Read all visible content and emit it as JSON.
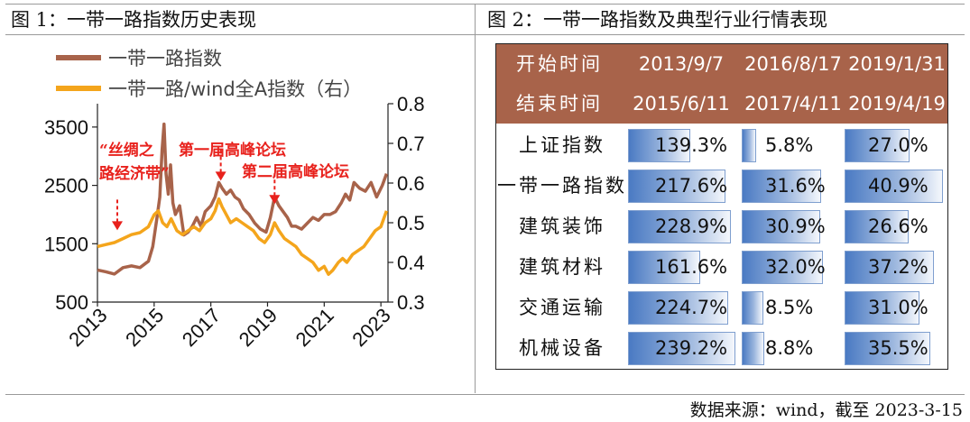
{
  "left_title": "图 1：一带一路指数历史表现",
  "right_title": "图 2：一带一路指数及典型行业行情表现",
  "source": "数据来源：wind，截至 2023-3-15",
  "colors": {
    "brown": "#a8634a",
    "orange": "#f4a51c",
    "annotation": "#e8211c",
    "bar": "#4a7ac3"
  },
  "chart_data": {
    "type": "line",
    "title": "一带一路指数历史表现",
    "x_ticks": [
      "2013",
      "2015",
      "2017",
      "2019",
      "2021",
      "2023"
    ],
    "xlim": [
      2013.0,
      2023.25
    ],
    "left_axis": {
      "ticks": [
        "500",
        "1500",
        "2500",
        "3500"
      ],
      "ylim": [
        500,
        3900
      ]
    },
    "right_axis": {
      "ticks": [
        "0.3",
        "0.4",
        "0.5",
        "0.6",
        "0.7",
        "0.8"
      ],
      "ylim": [
        0.3,
        0.8
      ]
    },
    "legend": [
      "一带一路指数",
      "一带一路/wind全A指数（右）"
    ],
    "series": [
      {
        "name": "一带一路指数",
        "axis": "left",
        "points": [
          [
            2013.0,
            1050
          ],
          [
            2013.3,
            1020
          ],
          [
            2013.6,
            980
          ],
          [
            2013.9,
            1090
          ],
          [
            2014.2,
            1120
          ],
          [
            2014.5,
            1090
          ],
          [
            2014.8,
            1200
          ],
          [
            2014.95,
            1450
          ],
          [
            2015.1,
            1950
          ],
          [
            2015.2,
            2300
          ],
          [
            2015.28,
            3100
          ],
          [
            2015.35,
            3550
          ],
          [
            2015.42,
            2700
          ],
          [
            2015.5,
            2350
          ],
          [
            2015.58,
            2850
          ],
          [
            2015.66,
            2200
          ],
          [
            2015.75,
            2000
          ],
          [
            2015.9,
            2150
          ],
          [
            2016.05,
            1650
          ],
          [
            2016.2,
            1700
          ],
          [
            2016.35,
            1800
          ],
          [
            2016.5,
            1950
          ],
          [
            2016.65,
            1800
          ],
          [
            2016.8,
            2050
          ],
          [
            2017.0,
            2150
          ],
          [
            2017.15,
            2300
          ],
          [
            2017.28,
            2550
          ],
          [
            2017.4,
            2450
          ],
          [
            2017.55,
            2350
          ],
          [
            2017.7,
            2420
          ],
          [
            2017.85,
            2300
          ],
          [
            2018.0,
            2250
          ],
          [
            2018.15,
            2100
          ],
          [
            2018.35,
            2000
          ],
          [
            2018.55,
            1850
          ],
          [
            2018.75,
            1750
          ],
          [
            2018.95,
            1700
          ],
          [
            2019.1,
            1950
          ],
          [
            2019.25,
            2300
          ],
          [
            2019.4,
            2150
          ],
          [
            2019.55,
            2050
          ],
          [
            2019.7,
            1950
          ],
          [
            2019.85,
            1800
          ],
          [
            2020.0,
            1800
          ],
          [
            2020.2,
            1750
          ],
          [
            2020.4,
            1850
          ],
          [
            2020.6,
            1950
          ],
          [
            2020.8,
            1900
          ],
          [
            2021.0,
            2000
          ],
          [
            2021.2,
            2000
          ],
          [
            2021.4,
            2050
          ],
          [
            2021.6,
            2200
          ],
          [
            2021.75,
            2350
          ],
          [
            2021.9,
            2250
          ],
          [
            2022.05,
            2550
          ],
          [
            2022.25,
            2450
          ],
          [
            2022.45,
            2400
          ],
          [
            2022.65,
            2550
          ],
          [
            2022.85,
            2300
          ],
          [
            2023.05,
            2500
          ],
          [
            2023.2,
            2700
          ]
        ]
      },
      {
        "name": "一带一路/wind全A指数（右）",
        "axis": "right",
        "points": [
          [
            2013.0,
            0.44
          ],
          [
            2013.3,
            0.445
          ],
          [
            2013.6,
            0.45
          ],
          [
            2013.9,
            0.46
          ],
          [
            2014.2,
            0.47
          ],
          [
            2014.5,
            0.475
          ],
          [
            2014.8,
            0.49
          ],
          [
            2015.0,
            0.52
          ],
          [
            2015.15,
            0.53
          ],
          [
            2015.3,
            0.5
          ],
          [
            2015.45,
            0.49
          ],
          [
            2015.6,
            0.51
          ],
          [
            2015.8,
            0.48
          ],
          [
            2016.0,
            0.47
          ],
          [
            2016.2,
            0.48
          ],
          [
            2016.4,
            0.49
          ],
          [
            2016.6,
            0.48
          ],
          [
            2016.8,
            0.5
          ],
          [
            2017.0,
            0.51
          ],
          [
            2017.15,
            0.53
          ],
          [
            2017.28,
            0.56
          ],
          [
            2017.4,
            0.54
          ],
          [
            2017.55,
            0.52
          ],
          [
            2017.7,
            0.5
          ],
          [
            2017.9,
            0.51
          ],
          [
            2018.1,
            0.5
          ],
          [
            2018.3,
            0.49
          ],
          [
            2018.5,
            0.48
          ],
          [
            2018.7,
            0.46
          ],
          [
            2018.9,
            0.45
          ],
          [
            2019.1,
            0.47
          ],
          [
            2019.25,
            0.5
          ],
          [
            2019.4,
            0.48
          ],
          [
            2019.6,
            0.46
          ],
          [
            2019.8,
            0.45
          ],
          [
            2020.0,
            0.44
          ],
          [
            2020.2,
            0.42
          ],
          [
            2020.4,
            0.41
          ],
          [
            2020.6,
            0.4
          ],
          [
            2020.8,
            0.38
          ],
          [
            2021.0,
            0.39
          ],
          [
            2021.15,
            0.37
          ],
          [
            2021.3,
            0.38
          ],
          [
            2021.5,
            0.4
          ],
          [
            2021.65,
            0.41
          ],
          [
            2021.8,
            0.4
          ],
          [
            2022.0,
            0.42
          ],
          [
            2022.2,
            0.43
          ],
          [
            2022.4,
            0.44
          ],
          [
            2022.6,
            0.46
          ],
          [
            2022.8,
            0.48
          ],
          [
            2023.0,
            0.49
          ],
          [
            2023.2,
            0.53
          ]
        ]
      }
    ],
    "annotations": [
      {
        "lines": [
          "“丝绸之",
          "路经济带”"
        ],
        "arrow_x": 2013.7,
        "arrow_y": 1700
      },
      {
        "lines": [
          "第一届高峰论坛"
        ],
        "arrow_x": 2017.35,
        "arrow_y": 2550
      },
      {
        "lines": [
          "第二届高峰论坛"
        ],
        "arrow_x": 2019.25,
        "arrow_y": 2150
      }
    ]
  },
  "table": {
    "header_rows": [
      {
        "label": "开始时间",
        "values": [
          "2013/9/7",
          "2016/8/17",
          "2019/1/31"
        ]
      },
      {
        "label": "结束时间",
        "values": [
          "2015/6/11",
          "2017/4/11",
          "2019/4/19"
        ]
      }
    ],
    "rows": [
      {
        "label": "上证指数",
        "values": [
          "139.3%",
          "5.8%",
          "27.0%"
        ],
        "nums": [
          139.3,
          5.8,
          27.0
        ]
      },
      {
        "label": "一带一路指数",
        "values": [
          "217.6%",
          "31.6%",
          "40.9%"
        ],
        "nums": [
          217.6,
          31.6,
          40.9
        ]
      },
      {
        "label": "建筑装饰",
        "values": [
          "228.9%",
          "30.9%",
          "26.6%"
        ],
        "nums": [
          228.9,
          30.9,
          26.6
        ]
      },
      {
        "label": "建筑材料",
        "values": [
          "161.6%",
          "32.0%",
          "37.2%"
        ],
        "nums": [
          161.6,
          32.0,
          37.2
        ]
      },
      {
        "label": "交通运输",
        "values": [
          "224.7%",
          "8.5%",
          "31.0%"
        ],
        "nums": [
          224.7,
          8.5,
          31.0
        ]
      },
      {
        "label": "机械设备",
        "values": [
          "239.2%",
          "8.8%",
          "35.5%"
        ],
        "nums": [
          239.2,
          8.8,
          35.5
        ]
      }
    ]
  }
}
